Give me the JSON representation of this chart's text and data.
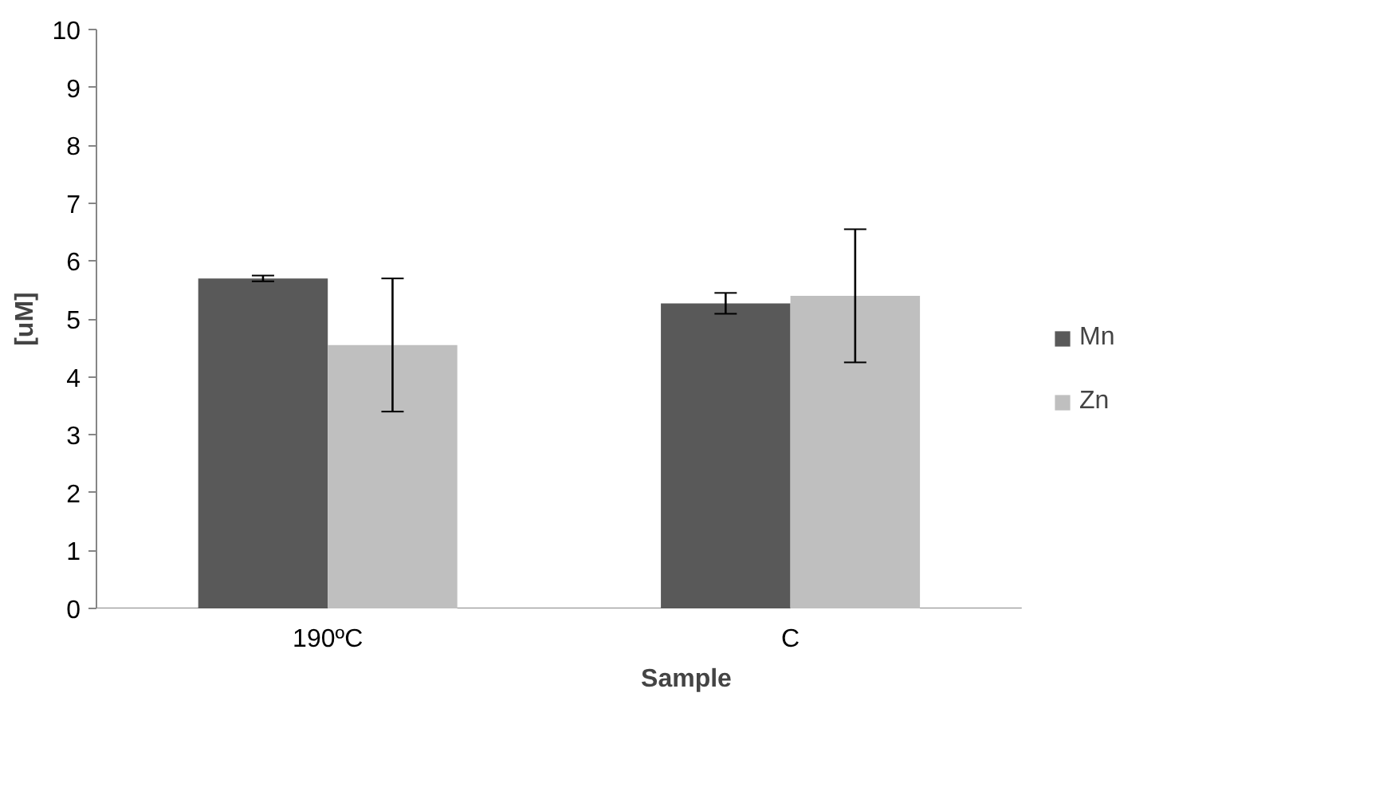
{
  "chart_data": {
    "type": "bar",
    "xlabel": "Sample",
    "ylabel": "[uM]",
    "categories": [
      "190ºC",
      "C"
    ],
    "series": [
      {
        "name": "Mn",
        "color": "#595959",
        "values": [
          5.7,
          5.27
        ],
        "errors": [
          0.05,
          0.18
        ]
      },
      {
        "name": "Zn",
        "color": "#bfbfbf",
        "values": [
          4.55,
          5.4
        ],
        "errors": [
          1.15,
          1.15
        ]
      }
    ],
    "ylim": [
      0,
      10
    ],
    "yticks": [
      0,
      1,
      2,
      3,
      4,
      5,
      6,
      7,
      8,
      9,
      10
    ],
    "grid": false,
    "legend": "right"
  }
}
